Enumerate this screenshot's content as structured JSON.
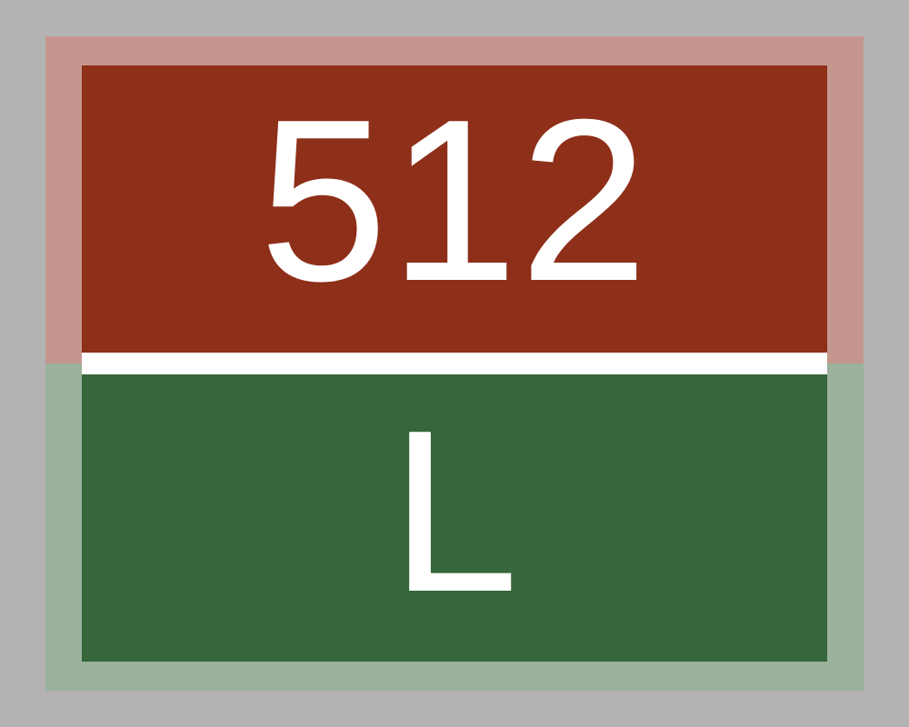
{
  "sign": {
    "number": "512",
    "letter": "L",
    "colors": {
      "background": "#b3b3b3",
      "top_border": "#c5968d",
      "top_panel": "#8e2f1a",
      "divider": "#ffffff",
      "bottom_border": "#9bb29d",
      "bottom_panel": "#36663b",
      "text": "#ffffff"
    }
  }
}
